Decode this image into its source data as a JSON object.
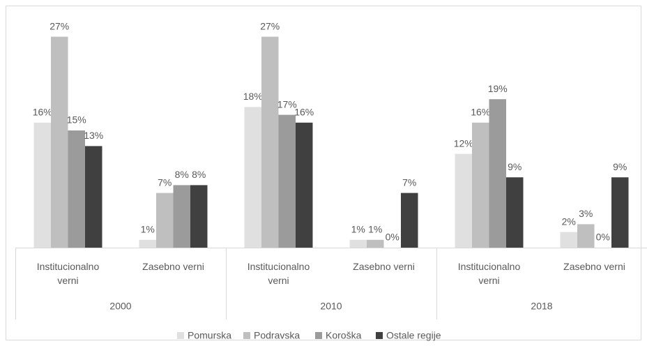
{
  "chart_data": {
    "type": "bar",
    "categories": [
      "Institucionalno verni",
      "Zasebno verni",
      "Institucionalno verni",
      "Zasebno verni",
      "Institucionalno verni",
      "Zasebno verni"
    ],
    "category_groups": [
      "2000",
      "2010",
      "2018"
    ],
    "series": [
      {
        "name": "Pomurska",
        "color": "#e0e0e0",
        "values": [
          16,
          1,
          18,
          1,
          12,
          2
        ],
        "value_labels": [
          "16%",
          "1%",
          "18%",
          "1%",
          "12%",
          "2%"
        ]
      },
      {
        "name": "Podravska",
        "color": "#bfbfbf",
        "values": [
          27,
          7,
          27,
          1,
          16,
          3
        ],
        "value_labels": [
          "27%",
          "7%",
          "27%",
          "1%",
          "16%",
          "3%"
        ]
      },
      {
        "name": "Koroška",
        "color": "#9b9b9b",
        "values": [
          15,
          8,
          17,
          0,
          19,
          0
        ],
        "value_labels": [
          "15%",
          "8%",
          "17%",
          "0%",
          "19%",
          "0%"
        ]
      },
      {
        "name": "Ostale regije",
        "color": "#404040",
        "values": [
          13,
          8,
          16,
          7,
          9,
          9
        ],
        "value_labels": [
          "13%",
          "8%",
          "16%",
          "7%",
          "9%",
          "9%"
        ]
      }
    ],
    "legend": "bottom"
  }
}
